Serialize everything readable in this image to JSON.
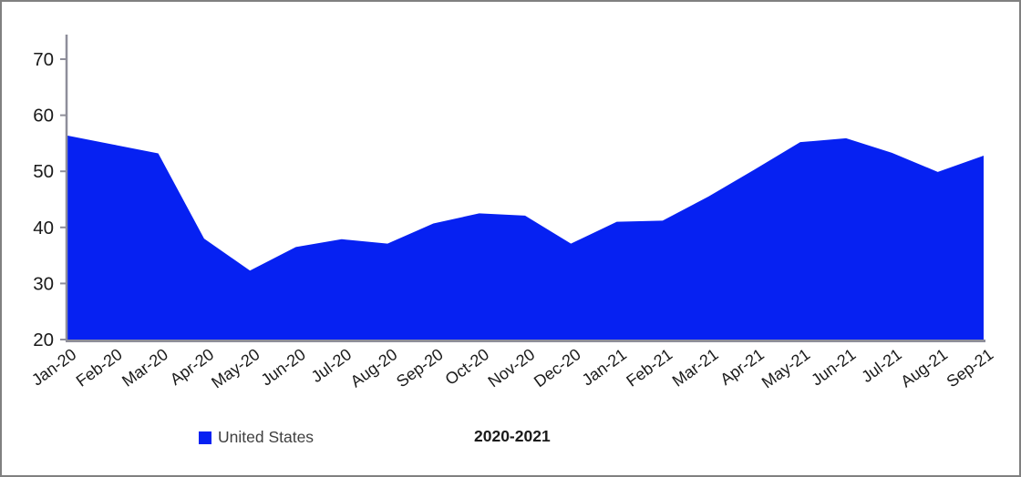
{
  "window": {
    "background_color": "#ffffff",
    "border_color": "#808080"
  },
  "chart_data": {
    "type": "area",
    "title": "",
    "xlabel": "2020-2021",
    "ylabel": "",
    "categories": [
      "Jan-20",
      "Feb-20",
      "Mar-20",
      "Apr-20",
      "May-20",
      "Jun-20",
      "Jul-20",
      "Aug-20",
      "Sep-20",
      "Oct-20",
      "Nov-20",
      "Dec-20",
      "Jan-21",
      "Feb-21",
      "Mar-21",
      "Apr-21",
      "May-21",
      "Jun-21",
      "Jul-21",
      "Aug-21",
      "Sep-21"
    ],
    "series": [
      {
        "name": "United States",
        "color": "#0621f2",
        "values": [
          56.4,
          54.8,
          53.2,
          38.0,
          32.3,
          36.5,
          37.9,
          37.1,
          40.7,
          42.5,
          42.1,
          37.1,
          41.0,
          41.2,
          45.5,
          50.3,
          55.2,
          55.9,
          53.3,
          49.9,
          52.8
        ]
      }
    ],
    "ylim": [
      20,
      75
    ],
    "yticks": [
      20,
      30,
      40,
      50,
      60,
      70
    ],
    "grid": false,
    "legend_position": "bottom-left",
    "axis_color": "#8e8e9a",
    "tick_label_color": "#1a1a1a",
    "x_label_angle_deg": -36
  },
  "legend": {
    "label": "United States",
    "swatch_color": "#0621f2"
  },
  "footer": {
    "period_label": "2020-2021"
  }
}
